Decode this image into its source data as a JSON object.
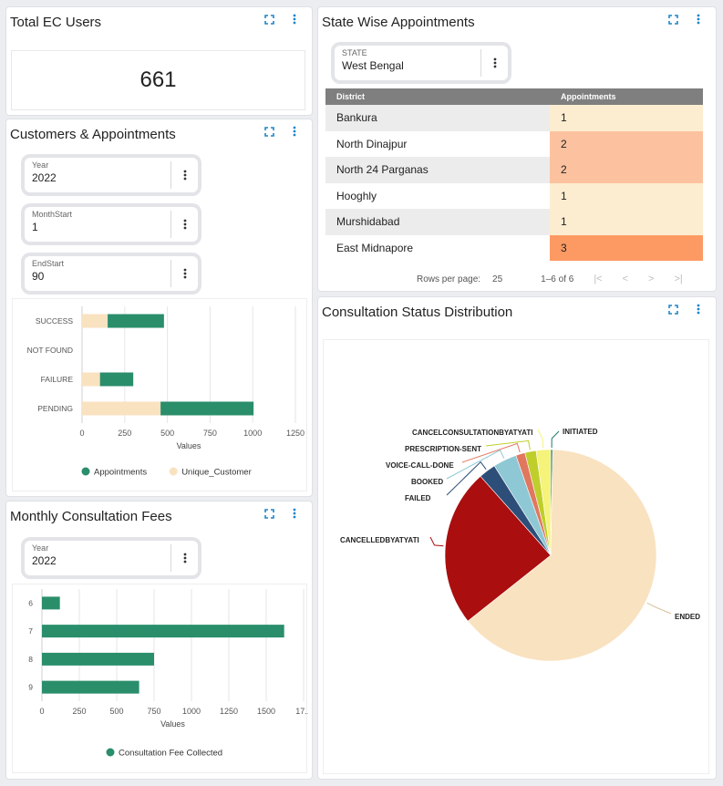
{
  "colors": {
    "green": "#2a8e6b",
    "cream": "#f9e2c0",
    "icon": "#1b85c9"
  },
  "total_users": {
    "title": "Total EC Users",
    "value": "661"
  },
  "customers": {
    "title": "Customers & Appointments",
    "fields": [
      {
        "label": "Year",
        "value": "2022"
      },
      {
        "label": "MonthStart",
        "value": "1"
      },
      {
        "label": "EndStart",
        "value": "90"
      }
    ]
  },
  "fees": {
    "title": "Monthly Consultation Fees",
    "field": {
      "label": "Year",
      "value": "2022"
    }
  },
  "state": {
    "title": "State Wise Appointments",
    "field": {
      "label": "STATE",
      "value": "West Bengal"
    },
    "columns": [
      "District",
      "Appointments"
    ],
    "rows": [
      {
        "district": "Bankura",
        "appointments": "1",
        "color": "#fdedd0"
      },
      {
        "district": "North Dinajpur",
        "appointments": "2",
        "color": "#fcc29f"
      },
      {
        "district": "North 24 Parganas",
        "appointments": "2",
        "color": "#fcc29f"
      },
      {
        "district": "Hooghly",
        "appointments": "1",
        "color": "#fdedd0"
      },
      {
        "district": "Murshidabad",
        "appointments": "1",
        "color": "#fdedd0"
      },
      {
        "district": "East Midnapore",
        "appointments": "3",
        "color": "#fd9a64"
      }
    ],
    "pager": {
      "rows_label": "Rows per page:",
      "rows_value": "25",
      "range": "1–6 of 6"
    }
  },
  "consultation": {
    "title": "Consultation Status Distribution"
  },
  "chart_data": [
    {
      "type": "bar",
      "orientation": "horizontal",
      "stacked": true,
      "categories": [
        "SUCCESS",
        "NOT FOUND",
        "FAILURE",
        "PENDING"
      ],
      "series": [
        {
          "name": "Appointments",
          "values": [
            330,
            0,
            195,
            545
          ],
          "color": "#2a8e6b"
        },
        {
          "name": "Unique_Customer",
          "values": [
            150,
            0,
            105,
            460
          ],
          "color": "#f9e2c0"
        }
      ],
      "xlabel": "Values",
      "xticks": [
        "0",
        "250",
        "500",
        "750",
        "1000",
        "1250"
      ],
      "xlim": [
        0,
        1250
      ],
      "legend": "bottom",
      "grid": true
    },
    {
      "type": "bar",
      "orientation": "horizontal",
      "categories": [
        "6",
        "7",
        "8",
        "9"
      ],
      "series": [
        {
          "name": "Consultation Fee Collected",
          "values": [
            120,
            1620,
            750,
            650
          ],
          "color": "#2a8e6b"
        }
      ],
      "xlabel": "Values",
      "xticks": [
        "0",
        "250",
        "500",
        "750",
        "1000",
        "1250",
        "1500",
        "17..."
      ],
      "xlim": [
        0,
        1750
      ],
      "legend": "bottom",
      "grid": true
    },
    {
      "type": "pie",
      "slices": [
        {
          "label": "INITIATED",
          "value": 0.3,
          "color": "#1f7a6b"
        },
        {
          "label": "ENDED",
          "value": 63.7,
          "color": "#f9e2c0"
        },
        {
          "label": "CANCELLEDBYATYATI",
          "value": 24.0,
          "color": "#aa0e0e"
        },
        {
          "label": "FAILED",
          "value": 2.6,
          "color": "#2d4e78"
        },
        {
          "label": "BOOKED",
          "value": 3.6,
          "color": "#8ec8d4"
        },
        {
          "label": "VOICE-CALL-DONE",
          "value": 1.4,
          "color": "#e0775e"
        },
        {
          "label": "PRESCRIPTION-SENT",
          "value": 1.7,
          "color": "#bfce2a"
        },
        {
          "label": "CANCELCONSULTATIONBYATYATI",
          "value": 2.2,
          "color": "#f5f37a"
        }
      ],
      "legend": "none"
    }
  ]
}
